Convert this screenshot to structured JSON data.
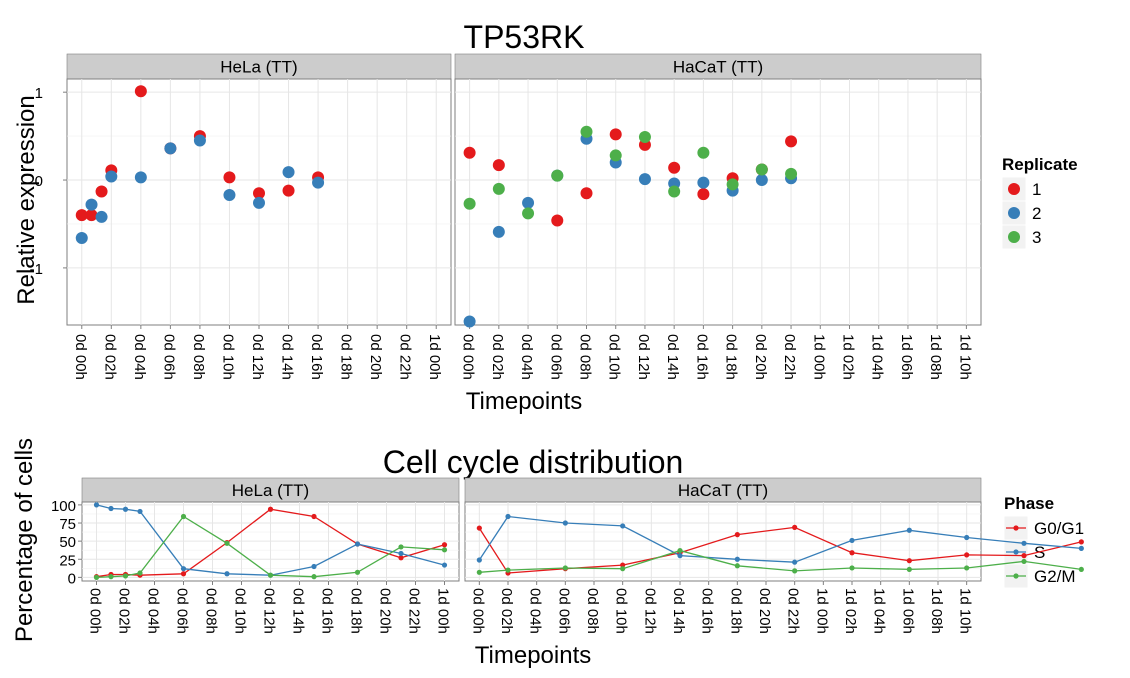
{
  "chart_data": [
    {
      "type": "scatter",
      "title": "TP53RK",
      "xlabel": "Timepoints",
      "ylabel": "Relative expression",
      "yticks": [
        -1,
        0,
        1
      ],
      "ylim": [
        -1.65,
        1.15
      ],
      "grid": true,
      "legend": {
        "title": "Replicate",
        "position": "right",
        "items": [
          "1",
          "2",
          "3"
        ]
      },
      "colors": {
        "1": "#e41a1c",
        "2": "#377eb8",
        "3": "#4daf4a"
      },
      "panels": [
        {
          "label": "HeLa (TT)",
          "categories": [
            "0d 00h",
            "0d 02h",
            "0d 04h",
            "0d 06h",
            "0d 08h",
            "0d 10h",
            "0d 12h",
            "0d 14h",
            "0d 16h",
            "0d 18h",
            "0d 20h",
            "0d 22h",
            "1d 00h"
          ],
          "series": [
            {
              "name": "1",
              "points": [
                [
                  0,
                  -0.4
                ],
                [
                  0.33,
                  -0.4
                ],
                [
                  0.67,
                  -0.13
                ],
                [
                  1,
                  0.11
                ],
                [
                  2,
                  1.01
                ],
                [
                  3,
                  0.36
                ],
                [
                  4,
                  0.5
                ],
                [
                  5,
                  0.03
                ],
                [
                  6,
                  -0.15
                ],
                [
                  7,
                  -0.12
                ],
                [
                  8,
                  0.03
                ]
              ]
            },
            {
              "name": "2",
              "points": [
                [
                  0,
                  -0.66
                ],
                [
                  0.33,
                  -0.28
                ],
                [
                  0.67,
                  -0.42
                ],
                [
                  1,
                  0.04
                ],
                [
                  2,
                  0.03
                ],
                [
                  3,
                  0.36
                ],
                [
                  4,
                  0.45
                ],
                [
                  5,
                  -0.17
                ],
                [
                  6,
                  -0.26
                ],
                [
                  7,
                  0.09
                ],
                [
                  8,
                  -0.03
                ]
              ]
            }
          ]
        },
        {
          "label": "HaCaT (TT)",
          "categories": [
            "0d 00h",
            "0d 02h",
            "0d 04h",
            "0d 06h",
            "0d 08h",
            "0d 10h",
            "0d 12h",
            "0d 14h",
            "0d 16h",
            "0d 18h",
            "0d 20h",
            "0d 22h",
            "1d 00h",
            "1d 02h",
            "1d 04h",
            "1d 06h",
            "1d 08h",
            "1d 10h"
          ],
          "series": [
            {
              "name": "1",
              "points": [
                [
                  0,
                  0.31
                ],
                [
                  1,
                  0.17
                ],
                [
                  3,
                  -0.46
                ],
                [
                  4,
                  -0.15
                ],
                [
                  5,
                  0.52
                ],
                [
                  6,
                  0.4
                ],
                [
                  7,
                  0.14
                ],
                [
                  8,
                  -0.16
                ],
                [
                  9,
                  0.02
                ],
                [
                  10,
                  0.12
                ],
                [
                  11,
                  0.44
                ]
              ]
            },
            {
              "name": "2",
              "points": [
                [
                  0,
                  -1.61
                ],
                [
                  1,
                  -0.59
                ],
                [
                  2,
                  -0.26
                ],
                [
                  3,
                  0.05
                ],
                [
                  4,
                  0.47
                ],
                [
                  5,
                  0.2
                ],
                [
                  6,
                  0.01
                ],
                [
                  7,
                  -0.04
                ],
                [
                  8,
                  -0.03
                ],
                [
                  9,
                  -0.12
                ],
                [
                  10,
                  0.0
                ],
                [
                  11,
                  0.02
                ]
              ]
            },
            {
              "name": "3",
              "points": [
                [
                  0,
                  -0.27
                ],
                [
                  1,
                  -0.1
                ],
                [
                  2,
                  -0.38
                ],
                [
                  3,
                  0.05
                ],
                [
                  4,
                  0.55
                ],
                [
                  5,
                  0.28
                ],
                [
                  6,
                  0.49
                ],
                [
                  7,
                  -0.13
                ],
                [
                  8,
                  0.31
                ],
                [
                  9,
                  -0.05
                ],
                [
                  10,
                  0.12
                ],
                [
                  11,
                  0.07
                ]
              ]
            }
          ]
        }
      ]
    },
    {
      "type": "line",
      "title": "Cell cycle distribution",
      "xlabel": "Timepoints",
      "ylabel": "Percentage of cells",
      "yticks": [
        0,
        25,
        50,
        75,
        100
      ],
      "ylim": [
        -5,
        104
      ],
      "grid": true,
      "legend": {
        "title": "Phase",
        "position": "right",
        "items": [
          "G0/G1",
          "S",
          "G2/M"
        ]
      },
      "colors": {
        "G0/G1": "#e41a1c",
        "S": "#377eb8",
        "G2/M": "#4daf4a"
      },
      "panels": [
        {
          "label": "HeLa (TT)",
          "categories": [
            "0d 00h",
            "0d 02h",
            "0d 04h",
            "0d 06h",
            "0d 08h",
            "0d 10h",
            "0d 12h",
            "0d 14h",
            "0d 16h",
            "0d 18h",
            "0d 20h",
            "0d 22h",
            "1d 00h"
          ],
          "series": [
            {
              "name": "G0/G1",
              "points": [
                [
                  0,
                  1
                ],
                [
                  0.5,
                  4
                ],
                [
                  1,
                  4
                ],
                [
                  1.5,
                  3
                ],
                [
                  3,
                  5
                ],
                [
                  4.5,
                  48
                ],
                [
                  6,
                  94
                ],
                [
                  7.5,
                  84
                ],
                [
                  9,
                  46
                ],
                [
                  10.5,
                  27
                ],
                [
                  12,
                  45
                ]
              ]
            },
            {
              "name": "S",
              "points": [
                [
                  0,
                  100
                ],
                [
                  0.5,
                  95
                ],
                [
                  1,
                  94
                ],
                [
                  1.5,
                  91
                ],
                [
                  3,
                  12
                ],
                [
                  4.5,
                  5
                ],
                [
                  6,
                  3
                ],
                [
                  7.5,
                  15
                ],
                [
                  9,
                  46
                ],
                [
                  10.5,
                  33
                ],
                [
                  12,
                  17
                ]
              ]
            },
            {
              "name": "G2/M",
              "points": [
                [
                  0,
                  0
                ],
                [
                  0.5,
                  1
                ],
                [
                  1,
                  2
                ],
                [
                  1.5,
                  6
                ],
                [
                  3,
                  84
                ],
                [
                  4.5,
                  47
                ],
                [
                  6,
                  3
                ],
                [
                  7.5,
                  1
                ],
                [
                  9,
                  7
                ],
                [
                  10.5,
                  42
                ],
                [
                  12,
                  38
                ]
              ]
            }
          ]
        },
        {
          "label": "HaCaT (TT)",
          "categories": [
            "0d 00h",
            "0d 02h",
            "0d 04h",
            "0d 06h",
            "0d 08h",
            "0d 10h",
            "0d 12h",
            "0d 14h",
            "0d 16h",
            "0d 18h",
            "0d 20h",
            "0d 22h",
            "1d 00h",
            "1d 02h",
            "1d 04h",
            "1d 06h",
            "1d 08h",
            "1d 10h"
          ],
          "series": [
            {
              "name": "G0/G1",
              "points": [
                [
                  0,
                  68
                ],
                [
                  1,
                  6
                ],
                [
                  3,
                  12
                ],
                [
                  5,
                  17
                ],
                [
                  7,
                  34
                ],
                [
                  9,
                  59
                ],
                [
                  11,
                  69
                ],
                [
                  13,
                  34
                ],
                [
                  15,
                  23
                ],
                [
                  17,
                  31
                ],
                [
                  19,
                  30
                ],
                [
                  21,
                  49
                ]
              ]
            },
            {
              "name": "S",
              "points": [
                [
                  0,
                  24
                ],
                [
                  1,
                  84
                ],
                [
                  3,
                  75
                ],
                [
                  5,
                  71
                ],
                [
                  7,
                  30
                ],
                [
                  9,
                  25
                ],
                [
                  11,
                  21
                ],
                [
                  13,
                  51
                ],
                [
                  15,
                  65
                ],
                [
                  17,
                  55
                ],
                [
                  19,
                  47
                ],
                [
                  21,
                  40
                ]
              ]
            },
            {
              "name": "G2/M",
              "points": [
                [
                  0,
                  7
                ],
                [
                  1,
                  10
                ],
                [
                  3,
                  13
                ],
                [
                  5,
                  12
                ],
                [
                  7,
                  37
                ],
                [
                  9,
                  16
                ],
                [
                  11,
                  9
                ],
                [
                  13,
                  13
                ],
                [
                  15,
                  11
                ],
                [
                  17,
                  13
                ],
                [
                  19,
                  22
                ],
                [
                  21,
                  11
                ]
              ]
            }
          ]
        }
      ]
    }
  ]
}
